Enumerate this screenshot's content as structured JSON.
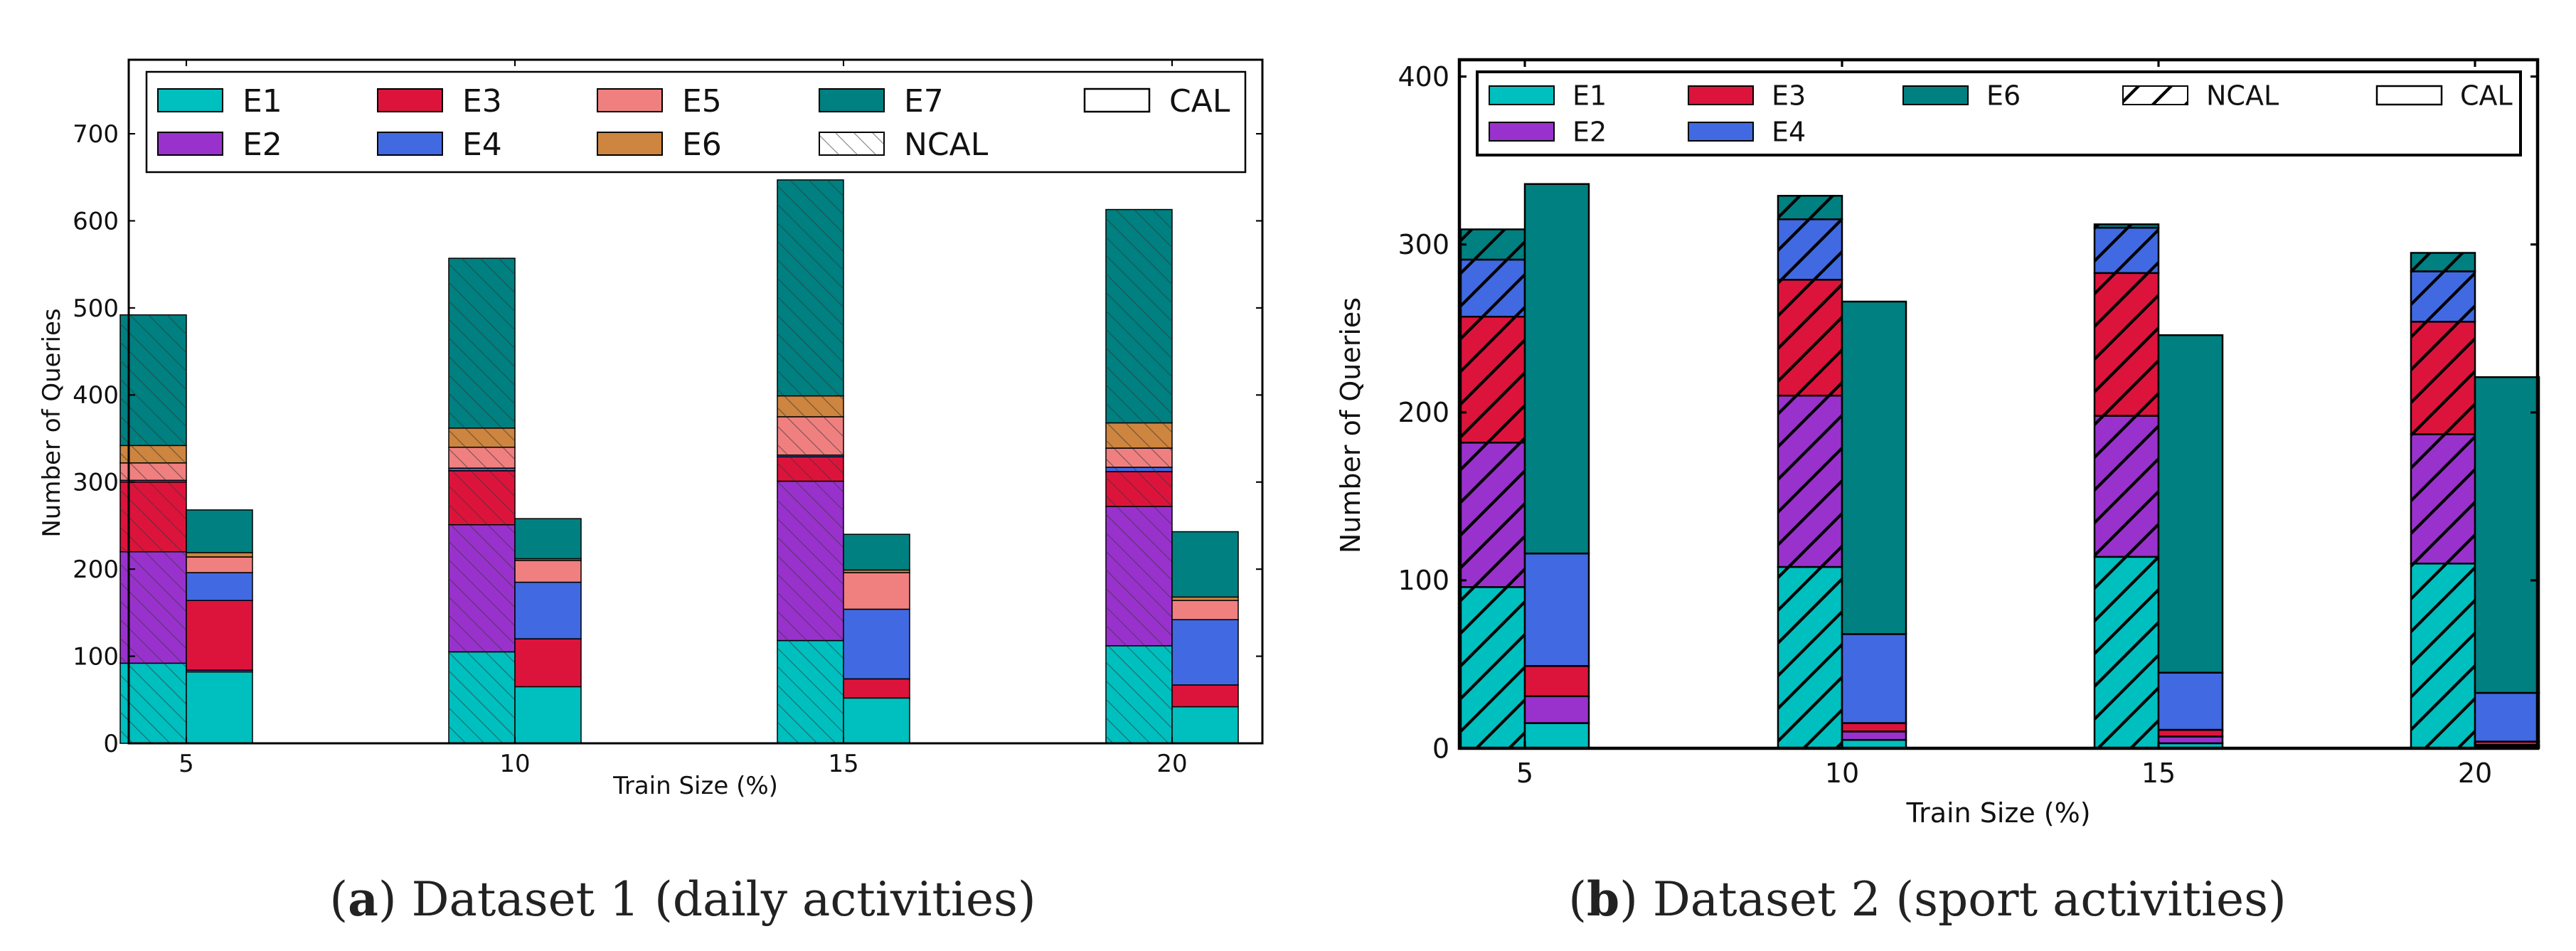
{
  "chart_data": [
    {
      "id": "a",
      "type": "bar",
      "stacked": true,
      "caption": {
        "letter": "a",
        "text": "Dataset 1 (daily activities)"
      },
      "xlabel": "Train Size (%)",
      "ylabel": "Number of Queries",
      "categories": [
        "5",
        "10",
        "15",
        "20"
      ],
      "ylim": [
        0,
        785
      ],
      "yticks": [
        0,
        100,
        200,
        300,
        400,
        500,
        600,
        700
      ],
      "legend_position": "top",
      "colors": {
        "E1": "#00bfbf",
        "E2": "#9932cc",
        "E3": "#dc143c",
        "E4": "#4169e1",
        "E5": "#f08080",
        "E6": "#cd853f",
        "E7": "#008080"
      },
      "legend": [
        {
          "label": "E1",
          "kind": "fill",
          "key": "E1"
        },
        {
          "label": "E3",
          "kind": "fill",
          "key": "E3"
        },
        {
          "label": "E5",
          "kind": "fill",
          "key": "E5"
        },
        {
          "label": "E7",
          "kind": "fill",
          "key": "E7"
        },
        {
          "label": "CAL",
          "kind": "empty"
        },
        {
          "label": "E2",
          "kind": "fill",
          "key": "E2"
        },
        {
          "label": "E4",
          "kind": "fill",
          "key": "E4"
        },
        {
          "label": "E6",
          "kind": "fill",
          "key": "E6"
        },
        {
          "label": "NCAL",
          "kind": "hatch"
        }
      ],
      "groups": [
        {
          "name": "NCAL",
          "hatched": true,
          "series": [
            {
              "name": "E1",
              "values": [
                92,
                105,
                118,
                112
              ]
            },
            {
              "name": "E2",
              "values": [
                128,
                146,
                183,
                160
              ]
            },
            {
              "name": "E3",
              "values": [
                80,
                62,
                28,
                40
              ]
            },
            {
              "name": "E4",
              "values": [
                2,
                3,
                2,
                5
              ]
            },
            {
              "name": "E5",
              "values": [
                20,
                24,
                44,
                22
              ]
            },
            {
              "name": "E6",
              "values": [
                20,
                22,
                24,
                29
              ]
            },
            {
              "name": "E7",
              "values": [
                150,
                195,
                248,
                245
              ]
            }
          ]
        },
        {
          "name": "CAL",
          "hatched": false,
          "series": [
            {
              "name": "E1",
              "values": [
                82,
                65,
                52,
                42
              ]
            },
            {
              "name": "E2",
              "values": [
                2,
                0,
                0,
                0
              ]
            },
            {
              "name": "E3",
              "values": [
                80,
                55,
                22,
                25
              ]
            },
            {
              "name": "E4",
              "values": [
                32,
                65,
                80,
                75
              ]
            },
            {
              "name": "E5",
              "values": [
                18,
                25,
                42,
                22
              ]
            },
            {
              "name": "E6",
              "values": [
                5,
                2,
                3,
                4
              ]
            },
            {
              "name": "E7",
              "values": [
                49,
                46,
                41,
                75
              ]
            }
          ]
        }
      ]
    },
    {
      "id": "b",
      "type": "bar",
      "stacked": true,
      "caption": {
        "letter": "b",
        "text": "Dataset 2 (sport activities)"
      },
      "xlabel": "Train Size (%)",
      "ylabel": "Number of Queries",
      "categories": [
        "5",
        "10",
        "15",
        "20"
      ],
      "ylim": [
        0,
        410
      ],
      "yticks": [
        0,
        100,
        200,
        300,
        400
      ],
      "legend_position": "top",
      "colors": {
        "E1": "#00bfbf",
        "E2": "#9932cc",
        "E3": "#dc143c",
        "E4": "#4169e1",
        "E6": "#008080"
      },
      "legend": [
        {
          "label": "E1",
          "kind": "fill",
          "key": "E1"
        },
        {
          "label": "E3",
          "kind": "fill",
          "key": "E3"
        },
        {
          "label": "E6",
          "kind": "fill",
          "key": "E6"
        },
        {
          "label": "NCAL",
          "kind": "hatch"
        },
        {
          "label": "CAL",
          "kind": "empty"
        },
        {
          "label": "E2",
          "kind": "fill",
          "key": "E2"
        },
        {
          "label": "E4",
          "kind": "fill",
          "key": "E4"
        }
      ],
      "groups": [
        {
          "name": "NCAL",
          "hatched": true,
          "series": [
            {
              "name": "E1",
              "values": [
                96,
                108,
                114,
                110
              ]
            },
            {
              "name": "E2",
              "values": [
                86,
                102,
                84,
                77
              ]
            },
            {
              "name": "E3",
              "values": [
                75,
                69,
                85,
                67
              ]
            },
            {
              "name": "E4",
              "values": [
                34,
                36,
                27,
                30
              ]
            },
            {
              "name": "E6",
              "values": [
                18,
                14,
                2,
                11
              ]
            }
          ]
        },
        {
          "name": "CAL",
          "hatched": false,
          "series": [
            {
              "name": "E1",
              "values": [
                15,
                5,
                3,
                1
              ]
            },
            {
              "name": "E2",
              "values": [
                16,
                5,
                4,
                1
              ]
            },
            {
              "name": "E3",
              "values": [
                18,
                5,
                4,
                2
              ]
            },
            {
              "name": "E4",
              "values": [
                67,
                53,
                34,
                29
              ]
            },
            {
              "name": "E6",
              "values": [
                220,
                198,
                201,
                188
              ]
            }
          ]
        }
      ]
    }
  ]
}
